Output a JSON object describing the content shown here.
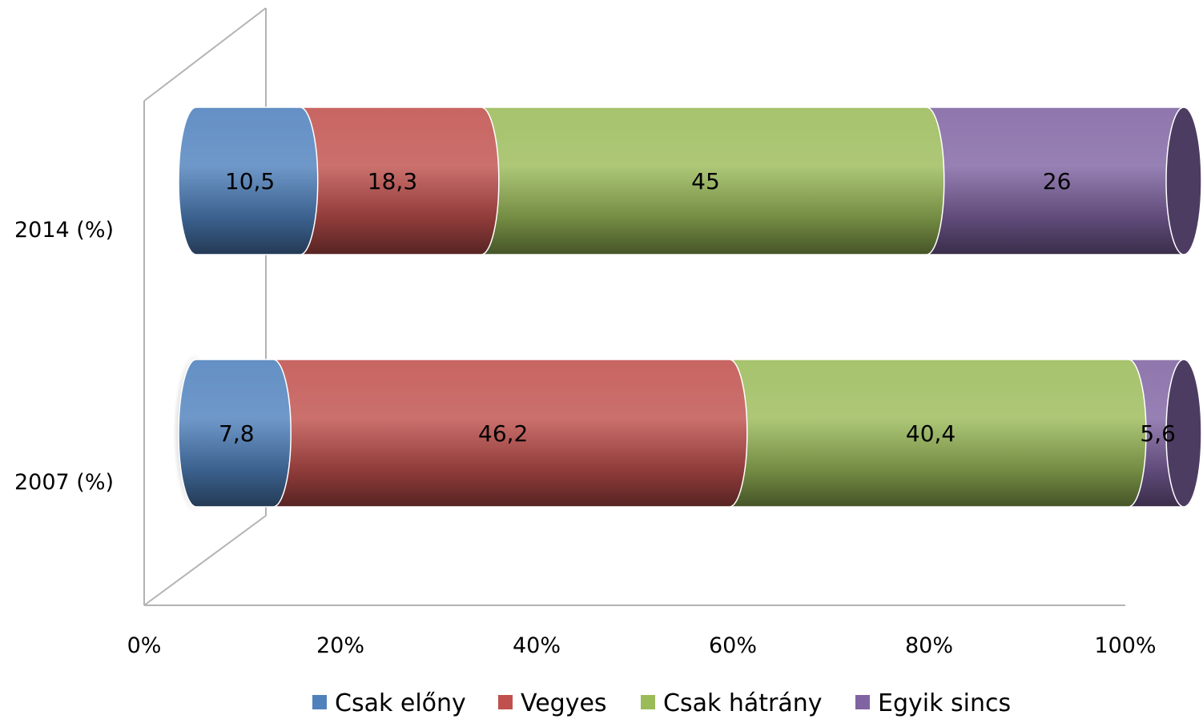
{
  "chart_data": {
    "type": "bar",
    "orientation": "horizontal",
    "stacked": "percent",
    "style": "3d-cylinder",
    "title": "",
    "xlabel": "",
    "ylabel": "",
    "categories": [
      "2014 (%)",
      "2007 (%)"
    ],
    "series": [
      {
        "name": "Csak előny",
        "color": "#4f81bd",
        "values": [
          10.5,
          7.8
        ],
        "labels": [
          "10,5",
          "7,8"
        ]
      },
      {
        "name": "Vegyes",
        "color": "#c0504d",
        "values": [
          18.3,
          46.2
        ],
        "labels": [
          "18,3",
          "46,2"
        ]
      },
      {
        "name": "Csak hátrány",
        "color": "#9bbb59",
        "values": [
          45,
          40.4
        ],
        "labels": [
          "45",
          "40,4"
        ]
      },
      {
        "name": "Egyik sincs",
        "color": "#8064a2",
        "values": [
          26,
          5.6
        ],
        "labels": [
          "26",
          "5,6"
        ]
      }
    ],
    "x_ticks": [
      "0%",
      "20%",
      "40%",
      "60%",
      "80%",
      "100%"
    ],
    "xlim": [
      0,
      100
    ],
    "grid": false,
    "legend_position": "bottom"
  }
}
